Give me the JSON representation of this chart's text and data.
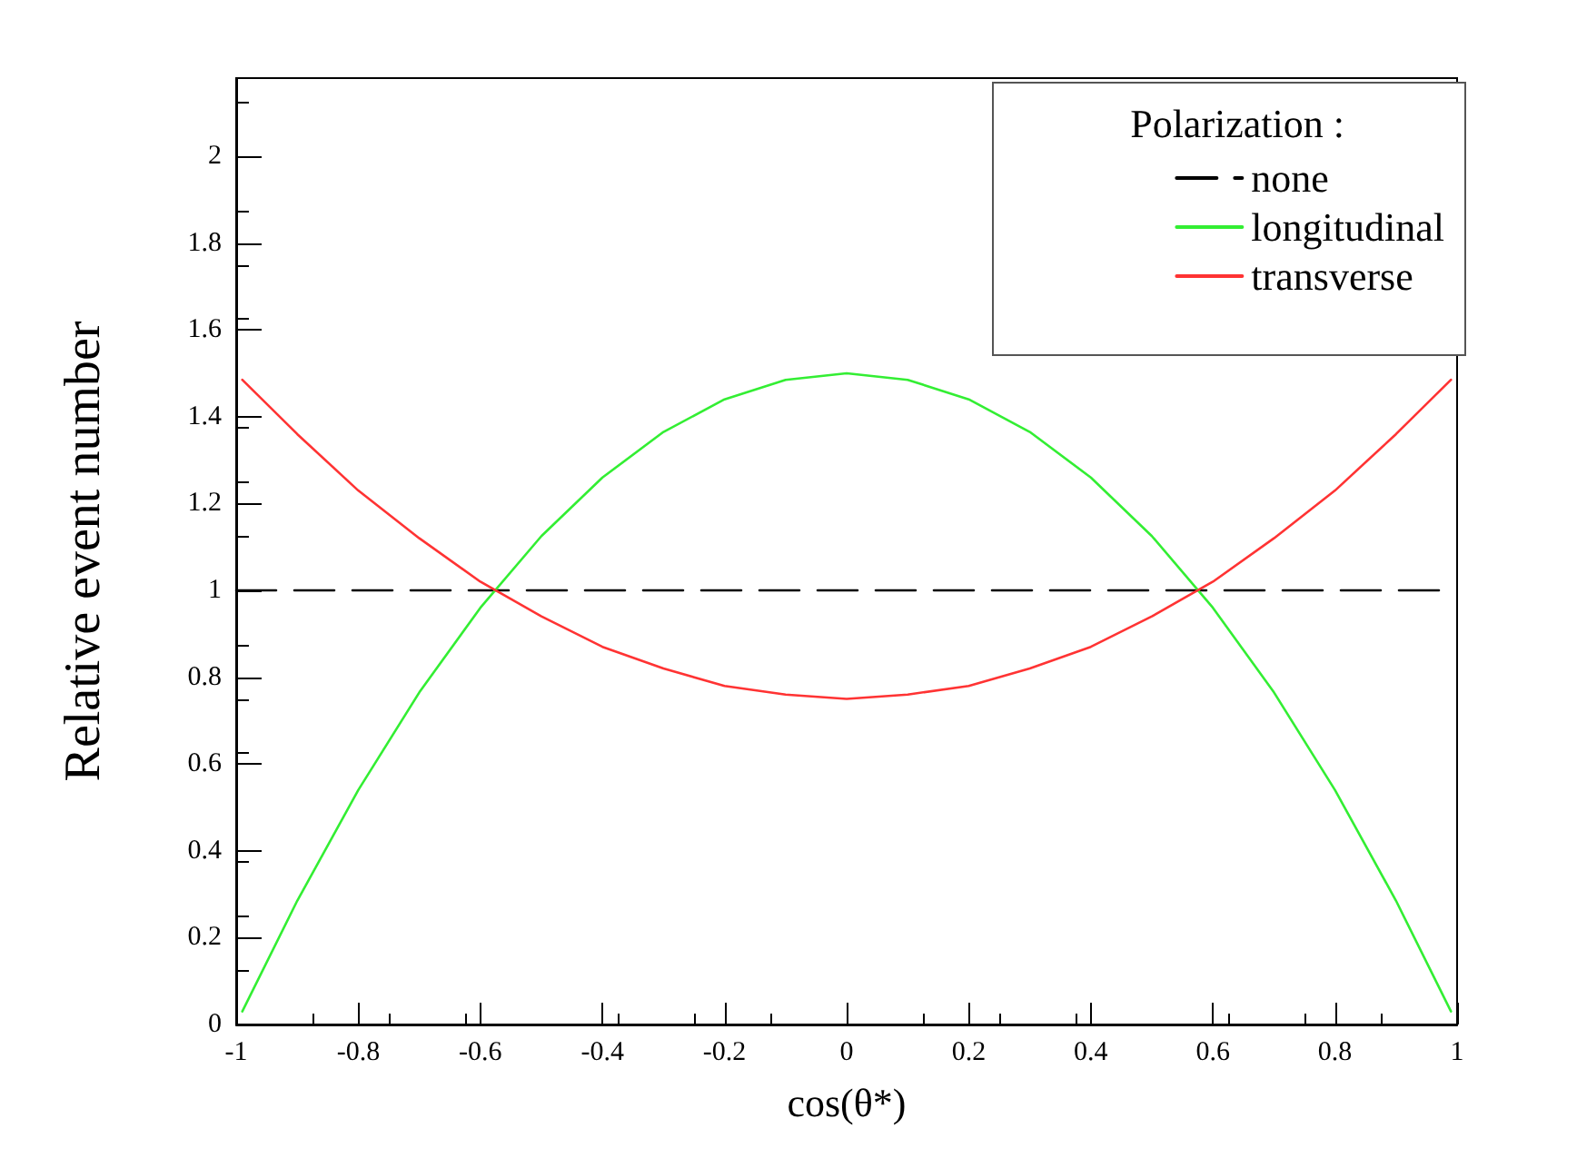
{
  "chart_data": {
    "type": "line",
    "xlabel": "cos(θ*)",
    "ylabel": "Relative event number",
    "legend_title": "Polarization :",
    "legend": "top right",
    "grid": false,
    "marker": "none",
    "xlim": [
      -1,
      1
    ],
    "xticks": [
      -1,
      -0.8,
      -0.6,
      -0.4,
      -0.2,
      0,
      0.2,
      0.4,
      0.6,
      0.8,
      1
    ],
    "ylim": [
      0,
      2.18
    ],
    "yticks": [
      0,
      0.2,
      0.4,
      0.6,
      0.8,
      1,
      1.2,
      1.4,
      1.6,
      1.8,
      2
    ],
    "series": [
      {
        "name": "none",
        "color": "#000000",
        "line_style": "dashed",
        "x": [
          -1,
          1
        ],
        "values": [
          1,
          1
        ]
      },
      {
        "name": "longitudinal",
        "color": "#33ee33",
        "line_style": "solid",
        "x": [
          -0.99,
          -0.9,
          -0.8,
          -0.7,
          -0.6,
          -0.5,
          -0.4,
          -0.3,
          -0.2,
          -0.1,
          0,
          0.1,
          0.2,
          0.3,
          0.4,
          0.5,
          0.6,
          0.7,
          0.8,
          0.9,
          0.99
        ],
        "values": [
          0.03,
          0.285,
          0.54,
          0.765,
          0.96,
          1.125,
          1.26,
          1.365,
          1.44,
          1.485,
          1.5,
          1.485,
          1.44,
          1.365,
          1.26,
          1.125,
          0.96,
          0.765,
          0.54,
          0.285,
          0.03
        ]
      },
      {
        "name": "transverse",
        "color": "#ff3333",
        "line_style": "solid",
        "x": [
          -0.99,
          -0.9,
          -0.8,
          -0.7,
          -0.6,
          -0.5,
          -0.4,
          -0.3,
          -0.2,
          -0.1,
          0,
          0.1,
          0.2,
          0.3,
          0.4,
          0.5,
          0.6,
          0.7,
          0.8,
          0.9,
          0.99
        ],
        "values": [
          1.485,
          1.36,
          1.23,
          1.12,
          1.02,
          0.94,
          0.87,
          0.82,
          0.78,
          0.76,
          0.75,
          0.76,
          0.78,
          0.82,
          0.87,
          0.94,
          1.02,
          1.12,
          1.23,
          1.36,
          1.485
        ]
      }
    ]
  }
}
